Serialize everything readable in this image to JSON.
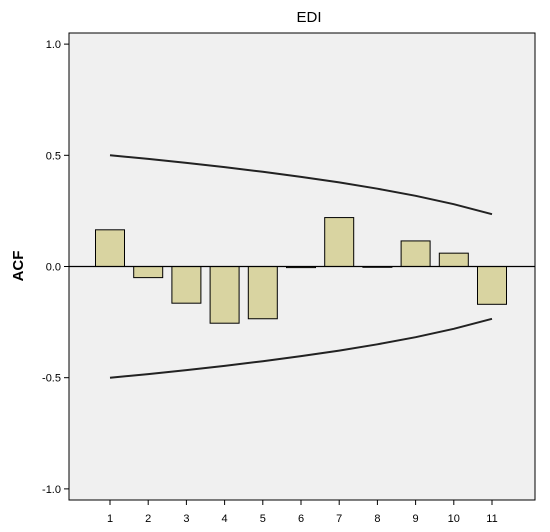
{
  "chart_data": {
    "type": "bar",
    "title": "EDI",
    "xlabel": "",
    "ylabel": "ACF",
    "categories": [
      "1",
      "2",
      "3",
      "4",
      "5",
      "6",
      "7",
      "8",
      "9",
      "10",
      "11"
    ],
    "series": [
      {
        "values": [
          0.165,
          -0.05,
          -0.165,
          -0.255,
          -0.235,
          -0.005,
          0.22,
          0.0,
          0.115,
          0.06,
          -0.17
        ]
      }
    ],
    "confidence_limits": {
      "upper": [
        0.5,
        0.484,
        0.466,
        0.447,
        0.426,
        0.403,
        0.378,
        0.35,
        0.318,
        0.28,
        0.235
      ],
      "lower": [
        -0.5,
        -0.484,
        -0.466,
        -0.447,
        -0.426,
        -0.403,
        -0.378,
        -0.35,
        -0.318,
        -0.28,
        -0.235
      ]
    },
    "ylim": [
      -1.05,
      1.05
    ],
    "yticks": [
      -1.0,
      -0.5,
      0.0,
      0.5,
      1.0
    ],
    "ytick_labels": [
      "-1.0",
      "-0.5",
      "0.0",
      "0.5",
      "1.0"
    ],
    "grid": false,
    "colors": {
      "plot_background": "#f0f0f0",
      "bar_fill": "#d9d4a1",
      "bar_stroke": "#000000",
      "confidence_line": "#222222"
    }
  }
}
